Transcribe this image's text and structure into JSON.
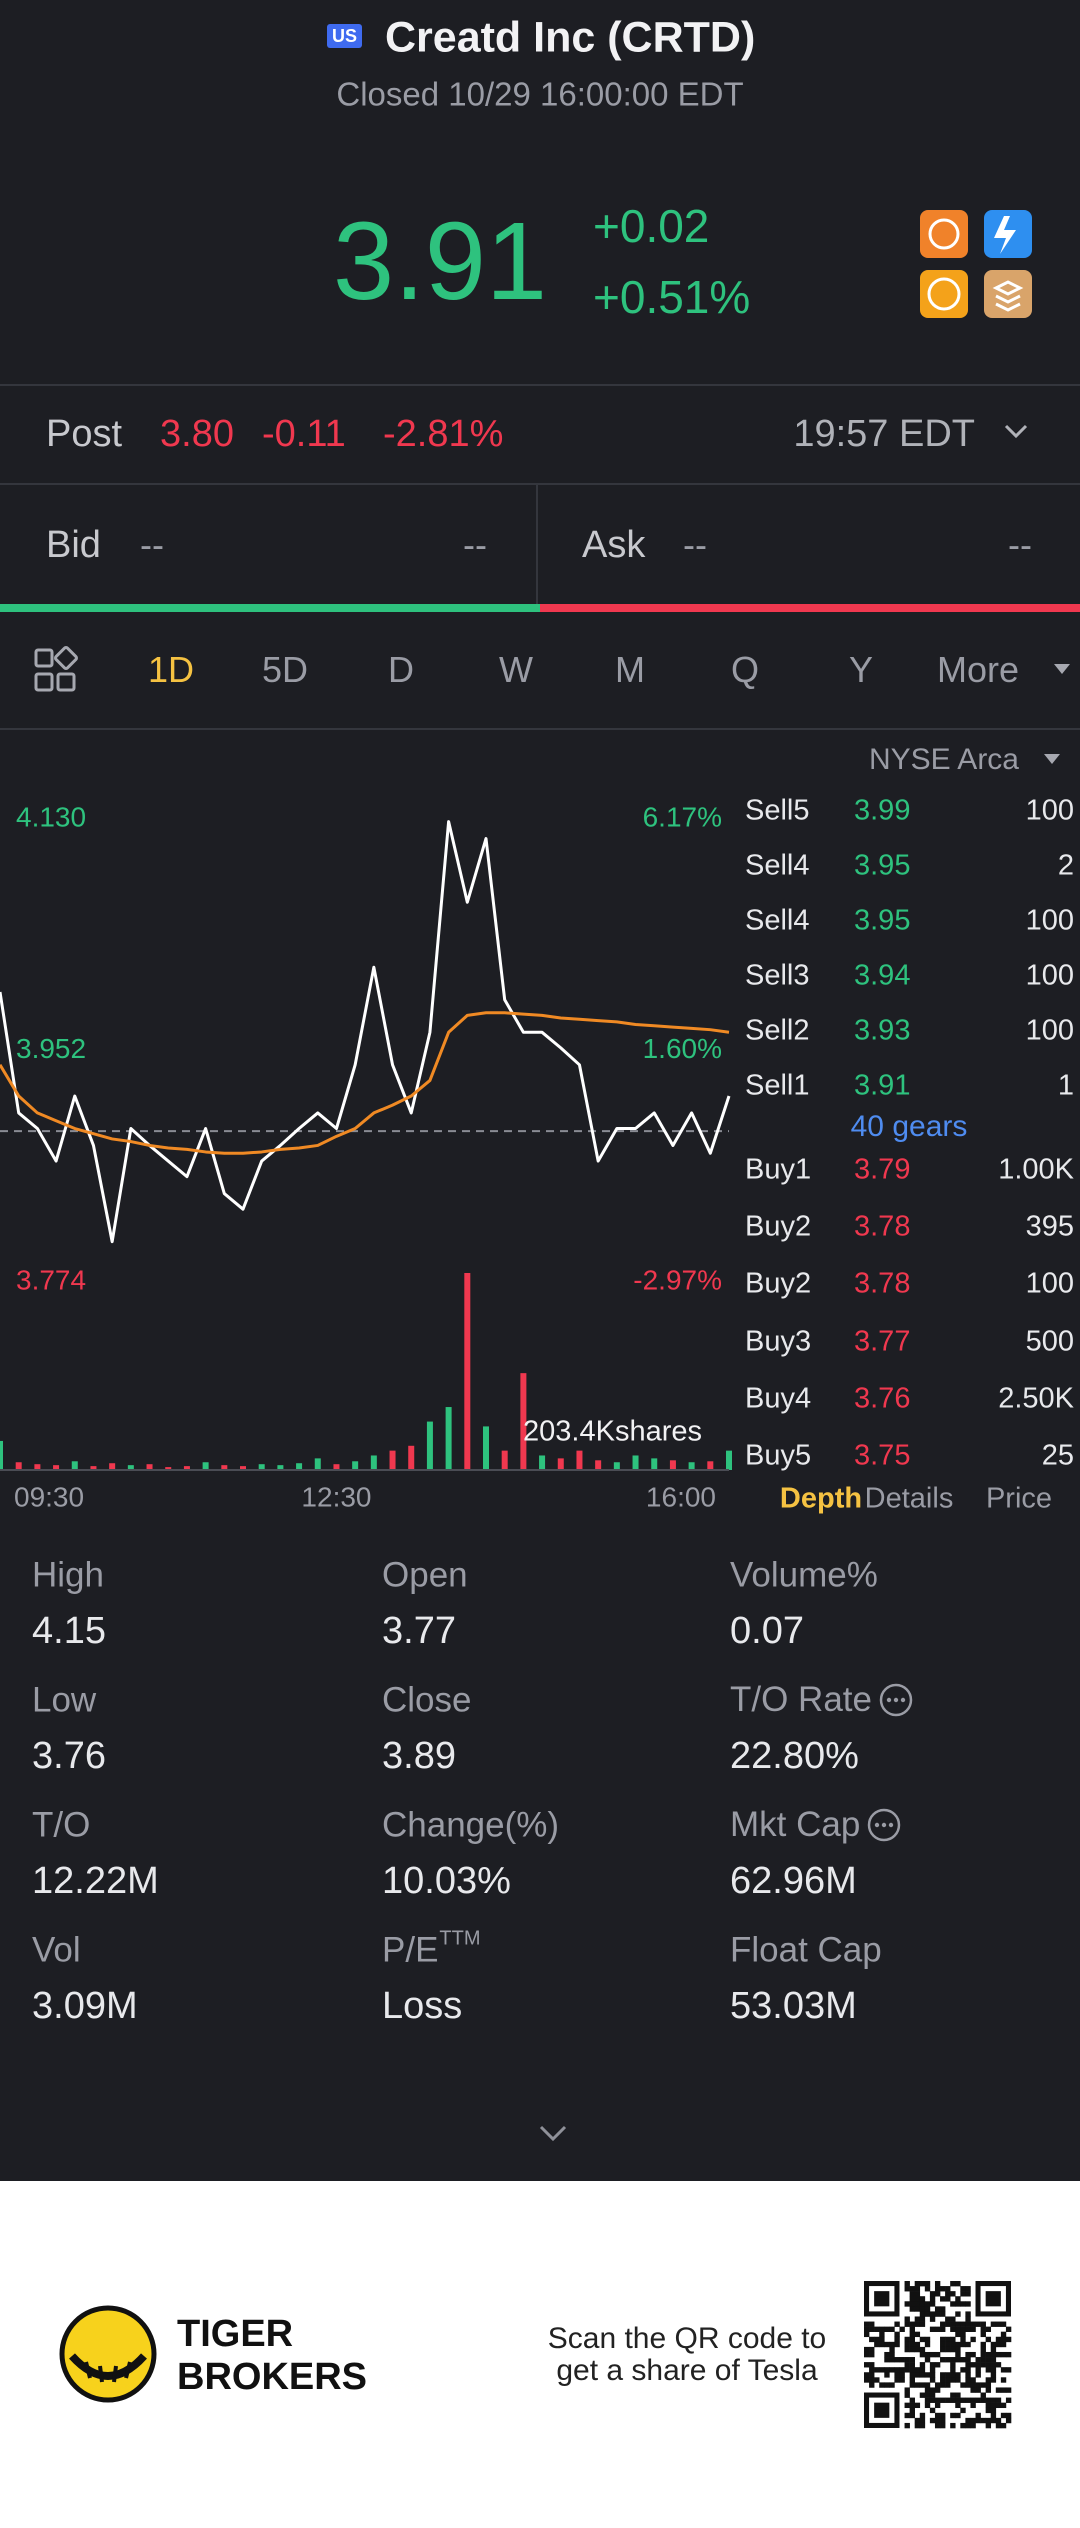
{
  "header": {
    "badge": "US",
    "title": "Creatd Inc (CRTD)",
    "status": "Closed 10/29 16:00:00 EDT",
    "price": "3.91",
    "change": "+0.02",
    "change_pct": "+0.51%"
  },
  "post": {
    "label": "Post",
    "price": "3.80",
    "change": "-0.11",
    "change_pct": "-2.81%",
    "time": "19:57 EDT"
  },
  "quote": {
    "bid": {
      "label": "Bid",
      "price": "--",
      "size": "--"
    },
    "ask": {
      "label": "Ask",
      "price": "--",
      "size": "--"
    }
  },
  "tabs": {
    "items": [
      "1D",
      "5D",
      "D",
      "W",
      "M",
      "Q",
      "Y",
      "More"
    ],
    "active": 0
  },
  "chart_data": {
    "type": "line",
    "exchange": "NYSE Arca",
    "up_color": "#2ec27e",
    "down_color": "#f0384f",
    "ylim": [
      3.774,
      4.13
    ],
    "yticks": [
      {
        "value": 4.13,
        "label": "4.130"
      },
      {
        "value": 3.952,
        "label": "3.952"
      },
      {
        "value": 3.774,
        "label": "3.774"
      }
    ],
    "y2lim": [
      -2.97,
      6.17
    ],
    "y2ticks": [
      {
        "value": 6.17,
        "label": "6.17%"
      },
      {
        "value": 1.6,
        "label": "1.60%"
      },
      {
        "value": -2.97,
        "label": "-2.97%"
      }
    ],
    "prev_close": 3.89,
    "xlim": [
      0,
      39
    ],
    "xticks": [
      {
        "value": 0,
        "label": "09:30"
      },
      {
        "value": 18,
        "label": "12:30"
      },
      {
        "value": 39,
        "label": "16:00"
      }
    ],
    "series": [
      {
        "color": "#ffffff",
        "values": [
          3.997,
          3.904,
          3.892,
          3.867,
          3.917,
          3.879,
          3.805,
          3.892,
          3.879,
          3.867,
          3.855,
          3.892,
          3.842,
          3.83,
          3.867,
          3.879,
          3.892,
          3.904,
          3.892,
          3.941,
          4.016,
          3.941,
          3.904,
          3.966,
          4.128,
          4.066,
          4.115,
          3.991,
          3.966,
          3.966,
          3.954,
          3.941,
          3.867,
          3.892,
          3.892,
          3.904,
          3.879,
          3.904,
          3.873,
          3.917
        ]
      },
      {
        "color": "#f08a24",
        "values": [
          3.941,
          3.917,
          3.904,
          3.898,
          3.892,
          3.888,
          3.884,
          3.882,
          3.879,
          3.877,
          3.876,
          3.874,
          3.873,
          3.873,
          3.874,
          3.876,
          3.877,
          3.879,
          3.886,
          3.892,
          3.904,
          3.91,
          3.917,
          3.929,
          3.966,
          3.979,
          3.981,
          3.981,
          3.98,
          3.979,
          3.977,
          3.976,
          3.975,
          3.974,
          3.972,
          3.971,
          3.97,
          3.969,
          3.968,
          3.966
        ]
      }
    ],
    "volume": {
      "ylim": [
        0,
        203400
      ],
      "max_label": {
        "value": 203400,
        "label": "203.4Kshares"
      },
      "values": [
        30000,
        8000,
        6000,
        5000,
        9000,
        4000,
        7000,
        5000,
        6000,
        3000,
        4000,
        8000,
        5000,
        4000,
        6000,
        5000,
        7000,
        12000,
        6000,
        9000,
        15000,
        20000,
        25000,
        50000,
        65000,
        203400,
        45000,
        20000,
        100000,
        15000,
        12000,
        20000,
        10000,
        8000,
        15000,
        12000,
        10000,
        8000,
        9000,
        20000
      ]
    }
  },
  "order_book": {
    "sell_color": "#2ec27e",
    "buy_color": "#f0384f",
    "sells": [
      {
        "side": "Sell5",
        "price": "3.99",
        "size": "100"
      },
      {
        "side": "Sell4",
        "price": "3.95",
        "size": "2"
      },
      {
        "side": "Sell4",
        "price": "3.95",
        "size": "100"
      },
      {
        "side": "Sell3",
        "price": "3.94",
        "size": "100"
      },
      {
        "side": "Sell2",
        "price": "3.93",
        "size": "100"
      },
      {
        "side": "Sell1",
        "price": "3.91",
        "size": "1"
      }
    ],
    "gears": "40 gears",
    "buys": [
      {
        "side": "Buy1",
        "price": "3.79",
        "size": "1.00K"
      },
      {
        "side": "Buy2",
        "price": "3.78",
        "size": "395"
      },
      {
        "side": "Buy2",
        "price": "3.78",
        "size": "100"
      },
      {
        "side": "Buy3",
        "price": "3.77",
        "size": "500"
      },
      {
        "side": "Buy4",
        "price": "3.76",
        "size": "2.50K"
      },
      {
        "side": "Buy5",
        "price": "3.75",
        "size": "25"
      }
    ],
    "tabs": [
      "Depth",
      "Details",
      "Price"
    ],
    "active_tab": 0
  },
  "stats": [
    {
      "label": "High",
      "value": "4.15"
    },
    {
      "label": "Open",
      "value": "3.77"
    },
    {
      "label": "Volume%",
      "value": "0.07"
    },
    {
      "label": "Low",
      "value": "3.76"
    },
    {
      "label": "Close",
      "value": "3.89"
    },
    {
      "label": "T/O Rate",
      "value": "22.80%",
      "info": true
    },
    {
      "label": "T/O",
      "value": "12.22M"
    },
    {
      "label": "Change(%)",
      "value": "10.03%"
    },
    {
      "label": "Mkt Cap",
      "value": "62.96M",
      "info": true
    },
    {
      "label": "Vol",
      "value": "3.09M"
    },
    {
      "label": "P/E",
      "sup": "TTM",
      "value": "Loss"
    },
    {
      "label": "Float Cap",
      "value": "53.03M"
    }
  ],
  "footer": {
    "brand_line1": "TIGER",
    "brand_line2": "BROKERS",
    "scan_line1": "Scan the QR code to",
    "scan_line2": "get a share of Tesla"
  }
}
